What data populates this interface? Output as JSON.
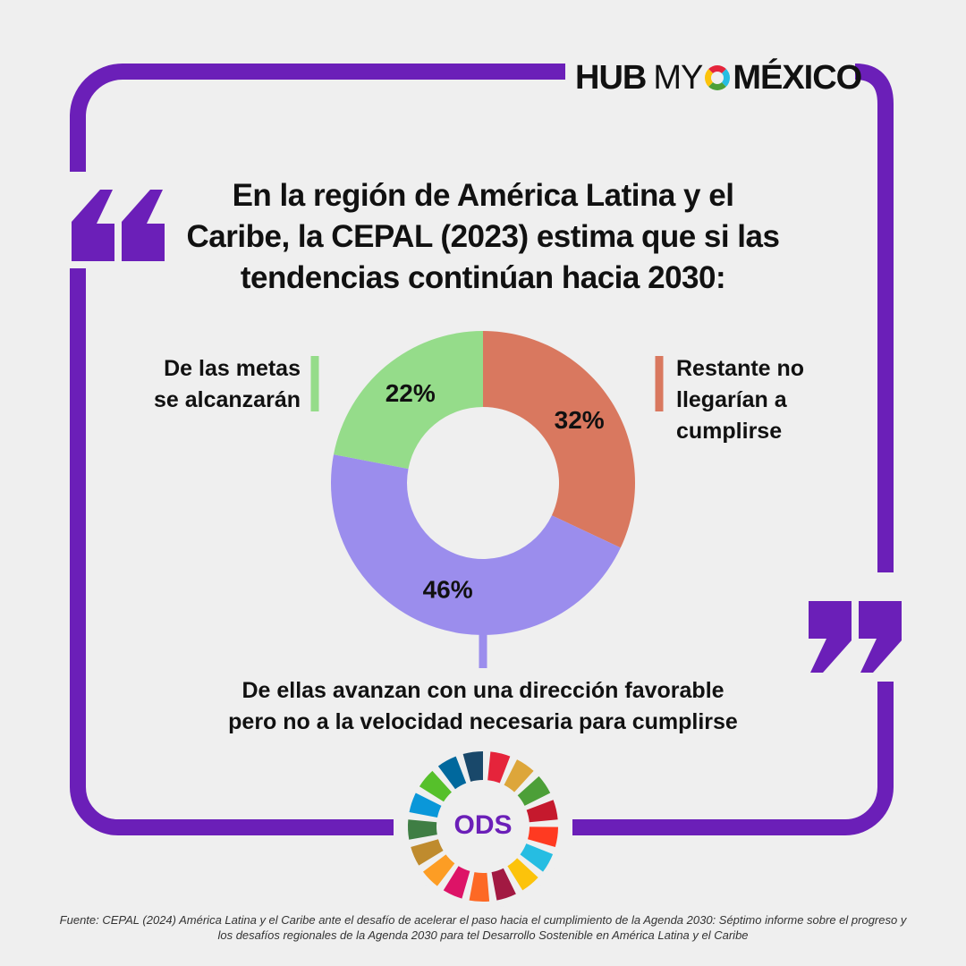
{
  "header": {
    "logo": {
      "hub": "HUB",
      "my": "MY",
      "mexico": "MÉXICO"
    }
  },
  "chart_data": {
    "type": "donut",
    "title": "En la región de América Latina y el Caribe, la CEPAL (2023) estima que si las tendencias continúan hacia 2030:",
    "categories": [
      "Restante no llegarían a cumplirse",
      "De ellas avanzan con una dirección favorable pero no a la velocidad necesaria para cumplirse",
      "De las metas se alcanzarán"
    ],
    "values": [
      32,
      46,
      22
    ],
    "value_labels": [
      "32%",
      "46%",
      "22%"
    ],
    "colors": [
      "#d9785f",
      "#9b8ded",
      "#95dc8a"
    ]
  },
  "badge": {
    "label": "ODS"
  },
  "footer": {
    "source": "Fuente: CEPAL (2024) América Latina y el Caribe ante el desafío de acelerar el paso hacia el cumplimiento de la Agenda 2030: Séptimo informe sobre el progreso y los desafíos regionales de la Agenda 2030 para tel Desarrollo Sostenible en América Latina y el Caribe"
  }
}
